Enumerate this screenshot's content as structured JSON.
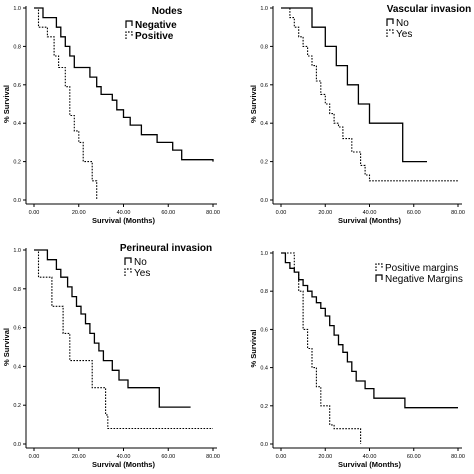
{
  "chart_data": [
    {
      "type": "line",
      "panel": "top-left",
      "legend_title": "Nodes",
      "legend_position": "top-right",
      "xlabel": "Survival (Months)",
      "ylabel": "% Survival",
      "xlim": [
        0,
        80
      ],
      "ylim": [
        0,
        1
      ],
      "x_ticks": [
        "0.00",
        "20.00",
        "40.00",
        "60.00",
        "80.00"
      ],
      "y_ticks": [
        "0.0",
        "0.2",
        "0.4",
        "0.6",
        "0.8",
        "1.0"
      ],
      "series": [
        {
          "name": "Negative",
          "style": "solid",
          "x": [
            0,
            4,
            7,
            10,
            12,
            14,
            16,
            18,
            22,
            25,
            28,
            30,
            33,
            35,
            37,
            40,
            43,
            48,
            55,
            58,
            62,
            66,
            70,
            80
          ],
          "y": [
            1.0,
            0.95,
            0.95,
            0.9,
            0.85,
            0.8,
            0.75,
            0.69,
            0.69,
            0.64,
            0.59,
            0.55,
            0.55,
            0.52,
            0.47,
            0.43,
            0.39,
            0.34,
            0.3,
            0.3,
            0.26,
            0.21,
            0.21,
            0.2
          ]
        },
        {
          "name": "Positive",
          "style": "dotted",
          "x": [
            0,
            2,
            4,
            6,
            9,
            11,
            14,
            16,
            18,
            20,
            22,
            24,
            26,
            28
          ],
          "y": [
            1.0,
            0.9,
            0.9,
            0.85,
            0.75,
            0.69,
            0.59,
            0.44,
            0.36,
            0.3,
            0.2,
            0.2,
            0.1,
            0.0
          ]
        }
      ]
    },
    {
      "type": "line",
      "panel": "top-right",
      "legend_title": "Vascular invasion",
      "legend_position": "top-right",
      "xlabel": "Survival (Months)",
      "ylabel": "% Survival",
      "xlim": [
        0,
        80
      ],
      "ylim": [
        0,
        1
      ],
      "x_ticks": [
        "0.00",
        "20.00",
        "40.00",
        "60.00",
        "80.00"
      ],
      "y_ticks": [
        "0.0",
        "0.2",
        "0.4",
        "0.6",
        "0.8",
        "1.0"
      ],
      "series": [
        {
          "name": "No",
          "style": "solid",
          "x": [
            0,
            10,
            14,
            20,
            25,
            30,
            35,
            40,
            45,
            55,
            60,
            66
          ],
          "y": [
            1.0,
            1.0,
            0.9,
            0.8,
            0.7,
            0.6,
            0.5,
            0.4,
            0.4,
            0.2,
            0.2,
            0.2
          ]
        },
        {
          "name": "Yes",
          "style": "dotted",
          "x": [
            0,
            4,
            6,
            8,
            10,
            12,
            14,
            16,
            18,
            20,
            22,
            24,
            26,
            28,
            32,
            36,
            38,
            40,
            80
          ],
          "y": [
            1.0,
            0.95,
            0.9,
            0.85,
            0.8,
            0.75,
            0.7,
            0.62,
            0.55,
            0.5,
            0.45,
            0.4,
            0.38,
            0.32,
            0.25,
            0.18,
            0.13,
            0.1,
            0.1
          ]
        }
      ]
    },
    {
      "type": "line",
      "panel": "bottom-left",
      "legend_title": "Perineural invasion",
      "legend_position": "top-right",
      "xlabel": "Survival (Months)",
      "ylabel": "% Survival",
      "xlim": [
        0,
        80
      ],
      "ylim": [
        0,
        1
      ],
      "x_ticks": [
        "0.00",
        "20.00",
        "40.00",
        "60.00",
        "80.00"
      ],
      "y_ticks": [
        "0.0",
        "0.2",
        "0.4",
        "0.6",
        "0.8",
        "1.0"
      ],
      "series": [
        {
          "name": "No",
          "style": "solid",
          "x": [
            0,
            4,
            6,
            10,
            12,
            15,
            17,
            19,
            21,
            23,
            25,
            27,
            29,
            31,
            35,
            38,
            42,
            50,
            56,
            63,
            70
          ],
          "y": [
            1.0,
            1.0,
            0.95,
            0.9,
            0.86,
            0.81,
            0.76,
            0.71,
            0.67,
            0.62,
            0.57,
            0.52,
            0.48,
            0.43,
            0.38,
            0.33,
            0.29,
            0.29,
            0.19,
            0.19,
            0.19
          ]
        },
        {
          "name": "Yes",
          "style": "dotted",
          "x": [
            0,
            2,
            5,
            8,
            11,
            13,
            16,
            20,
            26,
            32,
            33,
            50,
            80
          ],
          "y": [
            1.0,
            0.86,
            0.86,
            0.71,
            0.71,
            0.57,
            0.43,
            0.43,
            0.29,
            0.15,
            0.08,
            0.08,
            0.08
          ]
        }
      ]
    },
    {
      "type": "line",
      "panel": "bottom-right",
      "legend_title": "",
      "legend_position": "top-right",
      "xlabel": "Survival (Months)",
      "ylabel": "% Survival",
      "xlim": [
        0,
        80
      ],
      "ylim": [
        0,
        1
      ],
      "x_ticks": [
        "0.00",
        "20.00",
        "40.00",
        "60.00",
        "80.00"
      ],
      "y_ticks": [
        "0.0",
        "0.2",
        "0.4",
        "0.6",
        "0.8",
        "1.0"
      ],
      "series": [
        {
          "name": "Positive margins",
          "style": "dotted",
          "x": [
            0,
            4,
            6,
            8,
            10,
            12,
            14,
            16,
            18,
            20,
            22,
            24,
            26,
            36
          ],
          "y": [
            1.0,
            1.0,
            0.9,
            0.8,
            0.6,
            0.5,
            0.4,
            0.3,
            0.2,
            0.2,
            0.1,
            0.08,
            0.08,
            0.0
          ]
        },
        {
          "name": "Negative Margins",
          "style": "solid",
          "x": [
            0,
            2,
            4,
            6,
            8,
            10,
            12,
            14,
            16,
            18,
            20,
            22,
            24,
            26,
            28,
            30,
            32,
            34,
            38,
            42,
            48,
            56,
            62,
            70,
            80
          ],
          "y": [
            1.0,
            0.95,
            0.92,
            0.9,
            0.86,
            0.83,
            0.8,
            0.77,
            0.74,
            0.71,
            0.67,
            0.62,
            0.57,
            0.52,
            0.48,
            0.43,
            0.38,
            0.33,
            0.29,
            0.24,
            0.24,
            0.19,
            0.19,
            0.19,
            0.19
          ]
        }
      ]
    }
  ]
}
